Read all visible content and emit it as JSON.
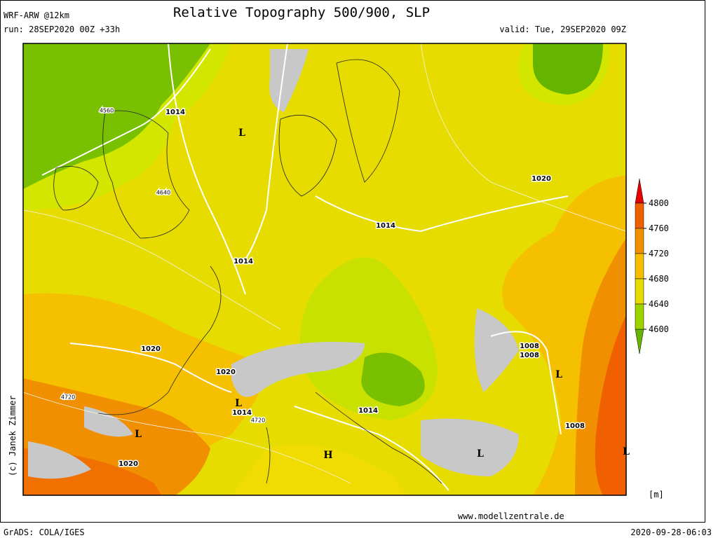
{
  "header": {
    "model": "WRF-ARW @12km",
    "run": "run: 28SEP2020 00Z +33h",
    "title": "Relative Topography 500/900, SLP",
    "valid": "valid: Tue, 29SEP2020 09Z"
  },
  "colorbar": {
    "ticks": [
      4800,
      4760,
      4720,
      4680,
      4640,
      4600
    ],
    "unit": "[m]"
  },
  "map_labels": [
    "1014",
    "L",
    "4560",
    "4640",
    "1020",
    "1014",
    "1014",
    "1020",
    "1020",
    "1008",
    "1008",
    "L",
    "4720",
    "L",
    "1014",
    "4720",
    "1014",
    "L",
    "1008",
    "1020",
    "H",
    "L",
    "L"
  ],
  "footer": {
    "credit": "(c) Janek Zimmer",
    "website": "www.modellzentrale.de",
    "software": "GrADS: COLA/IGES",
    "timestamp": "2020-09-28-06:03"
  }
}
